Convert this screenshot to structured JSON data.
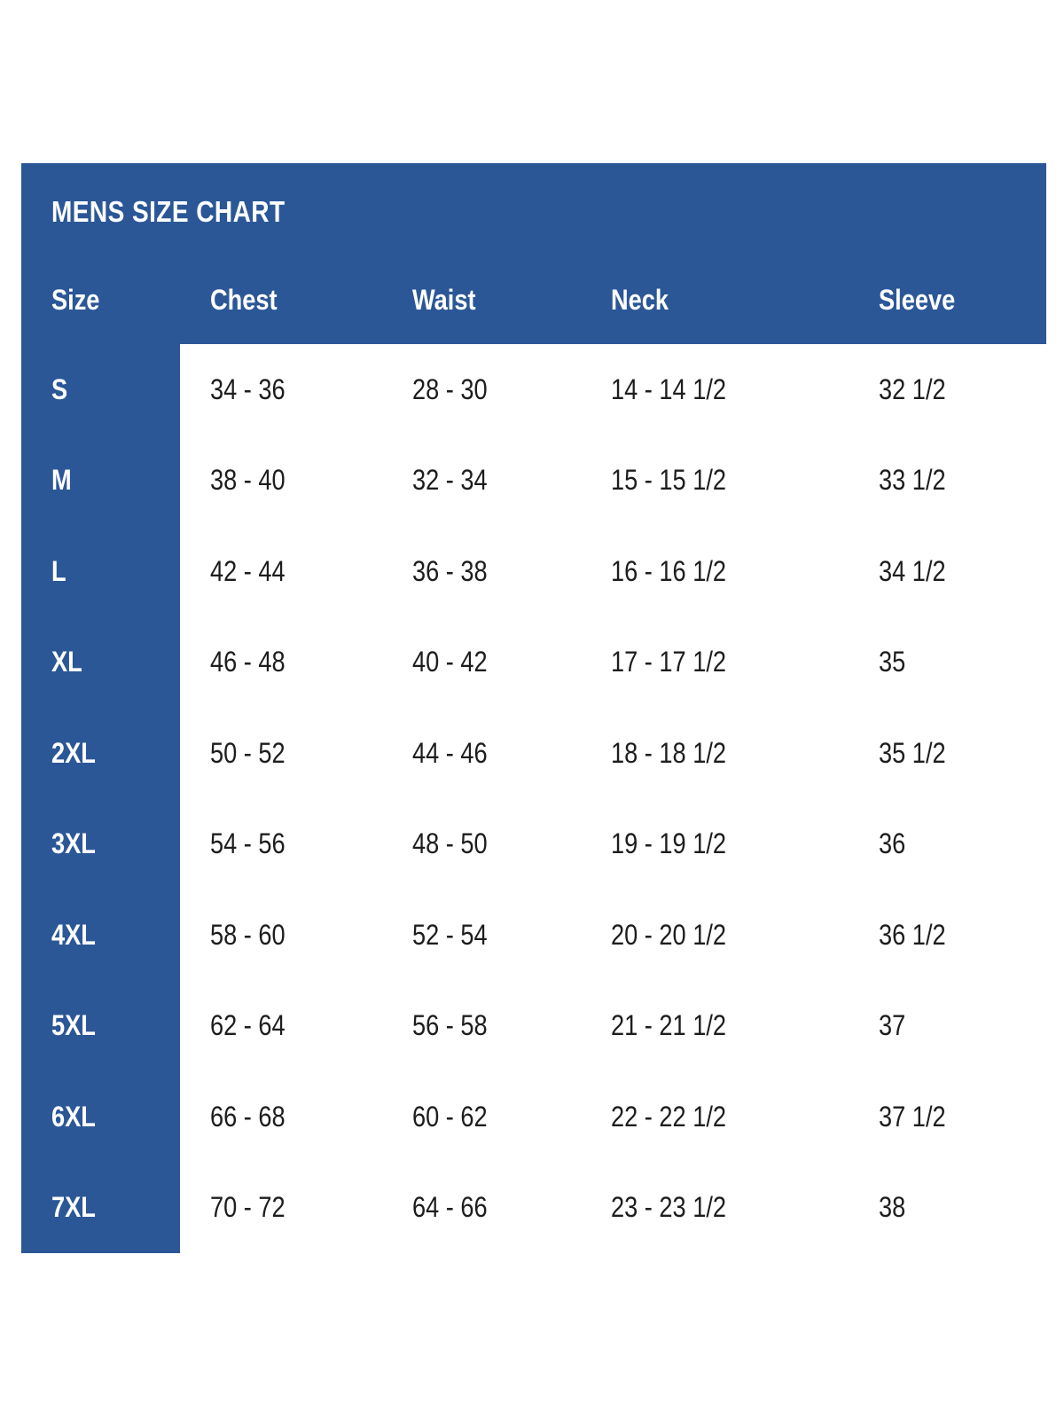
{
  "title": "MENS SIZE CHART",
  "columns": {
    "size": "Size",
    "chest": "Chest",
    "waist": "Waist",
    "neck": "Neck",
    "sleeve": "Sleeve"
  },
  "rows": [
    {
      "size": "S",
      "chest": "34 - 36",
      "waist": "28 - 30",
      "neck": "14 - 14 1/2",
      "sleeve": "32 1/2"
    },
    {
      "size": "M",
      "chest": "38 - 40",
      "waist": "32 - 34",
      "neck": "15 - 15 1/2",
      "sleeve": "33 1/2"
    },
    {
      "size": "L",
      "chest": "42 - 44",
      "waist": "36 - 38",
      "neck": "16 - 16 1/2",
      "sleeve": "34 1/2"
    },
    {
      "size": "XL",
      "chest": "46 - 48",
      "waist": "40 - 42",
      "neck": "17 - 17 1/2",
      "sleeve": "35"
    },
    {
      "size": "2XL",
      "chest": "50 - 52",
      "waist": "44 - 46",
      "neck": "18 - 18 1/2",
      "sleeve": "35 1/2"
    },
    {
      "size": "3XL",
      "chest": "54 - 56",
      "waist": "48 - 50",
      "neck": "19 - 19 1/2",
      "sleeve": "36"
    },
    {
      "size": "4XL",
      "chest": "58 - 60",
      "waist": "52 - 54",
      "neck": "20 - 20 1/2",
      "sleeve": "36 1/2"
    },
    {
      "size": "5XL",
      "chest": "62 - 64",
      "waist": "56 - 58",
      "neck": "21 - 21 1/2",
      "sleeve": "37"
    },
    {
      "size": "6XL",
      "chest": "66 - 68",
      "waist": "60 - 62",
      "neck": "22 - 22 1/2",
      "sleeve": "37 1/2"
    },
    {
      "size": "7XL",
      "chest": "70 - 72",
      "waist": "64 - 66",
      "neck": "23 - 23 1/2",
      "sleeve": "38"
    }
  ],
  "colors": {
    "band-blue": "#2b5797",
    "header-text": "#ffffff",
    "body-text": "#1d1d1d",
    "page-bg": "#ffffff"
  },
  "chart_data": {
    "type": "table",
    "title": "MENS SIZE CHART",
    "columns": [
      "Size",
      "Chest",
      "Waist",
      "Neck",
      "Sleeve"
    ],
    "rows": [
      [
        "S",
        "34 - 36",
        "28 - 30",
        "14 - 14 1/2",
        "32 1/2"
      ],
      [
        "M",
        "38 - 40",
        "32 - 34",
        "15 - 15 1/2",
        "33 1/2"
      ],
      [
        "L",
        "42 - 44",
        "36 - 38",
        "16 - 16 1/2",
        "34 1/2"
      ],
      [
        "XL",
        "46 - 48",
        "40 - 42",
        "17 - 17 1/2",
        "35"
      ],
      [
        "2XL",
        "50 - 52",
        "44 - 46",
        "18 - 18 1/2",
        "35 1/2"
      ],
      [
        "3XL",
        "54 - 56",
        "48 - 50",
        "19 - 19 1/2",
        "36"
      ],
      [
        "4XL",
        "58 - 60",
        "52 - 54",
        "20 - 20 1/2",
        "36 1/2"
      ],
      [
        "5XL",
        "62 - 64",
        "56 - 58",
        "21 - 21 1/2",
        "37"
      ],
      [
        "6XL",
        "66 - 68",
        "60 - 62",
        "22 - 22 1/2",
        "37 1/2"
      ],
      [
        "7XL",
        "70 - 72",
        "64 - 66",
        "23 - 23 1/2",
        "38"
      ]
    ],
    "layout": {
      "header_background": "#2b5797",
      "size_column_background": "#2b5797",
      "body_background": "#ffffff",
      "grid": false,
      "columns_alignment": "left"
    }
  }
}
